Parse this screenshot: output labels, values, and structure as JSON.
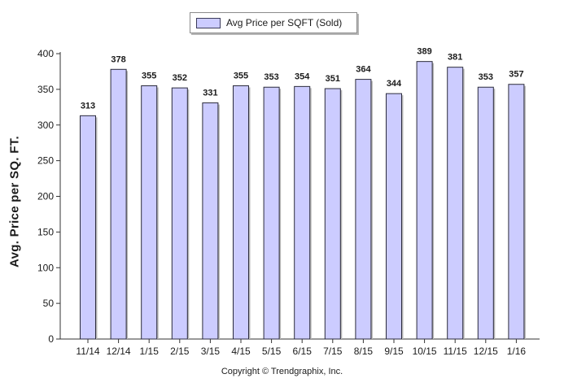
{
  "legend": {
    "label": "Avg Price per SQFT (Sold)"
  },
  "footer": {
    "copyright": "Copyright © Trendgraphix, Inc."
  },
  "chart_data": {
    "type": "bar",
    "title": "",
    "xlabel": "",
    "ylabel": "Avg. Price per SQ. FT.",
    "categories": [
      "11/14",
      "12/14",
      "1/15",
      "2/15",
      "3/15",
      "4/15",
      "5/15",
      "6/15",
      "7/15",
      "8/15",
      "9/15",
      "10/15",
      "11/15",
      "12/15",
      "1/16"
    ],
    "series": [
      {
        "name": "Avg Price per SQFT (Sold)",
        "values": [
          313,
          378,
          355,
          352,
          331,
          355,
          353,
          354,
          351,
          364,
          344,
          389,
          381,
          353,
          357
        ]
      }
    ],
    "ylim": [
      0,
      400
    ],
    "yticks": [
      0,
      50,
      100,
      150,
      200,
      250,
      300,
      350,
      400
    ],
    "grid": false,
    "legend_position": "top-center",
    "data_labels": true,
    "colors": {
      "bar_fill": "#ccccff",
      "bar_stroke": "#2b2b3b",
      "axis": "#333333",
      "text": "#1a1a1a"
    }
  }
}
